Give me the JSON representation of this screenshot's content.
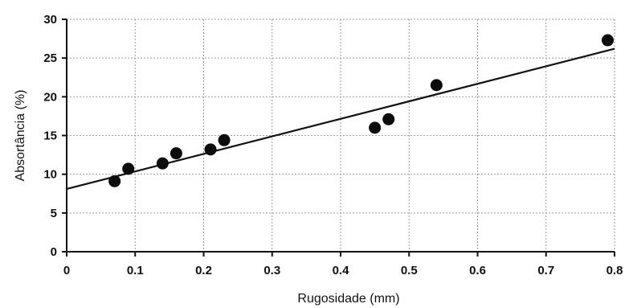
{
  "chart_data": {
    "type": "scatter",
    "xlabel": "Rugosidade (mm)",
    "ylabel": "Absortância (%)",
    "xlim": [
      0,
      0.8
    ],
    "ylim": [
      0,
      30
    ],
    "xticks": [
      0,
      0.1,
      0.2,
      0.3,
      0.4,
      0.5,
      0.6,
      0.7,
      0.8
    ],
    "xtick_labels": [
      "0",
      "0.1",
      "0.2",
      "0.3",
      "0.4",
      "0.5",
      "0.6",
      "0.7",
      "0.8"
    ],
    "yticks": [
      0,
      5,
      10,
      15,
      20,
      25,
      30
    ],
    "ytick_labels": [
      "0",
      "5",
      "10",
      "15",
      "20",
      "25",
      "30"
    ],
    "grid": true,
    "series": [
      {
        "x": [
          0.07,
          0.09,
          0.14,
          0.16,
          0.21,
          0.23,
          0.45,
          0.47,
          0.54,
          0.79
        ],
        "y": [
          9.1,
          10.7,
          11.4,
          12.7,
          13.2,
          14.4,
          16.0,
          17.1,
          21.5,
          27.3
        ]
      }
    ],
    "trendline": {
      "x": [
        0,
        0.8
      ],
      "y": [
        8.1,
        26.2
      ]
    }
  }
}
